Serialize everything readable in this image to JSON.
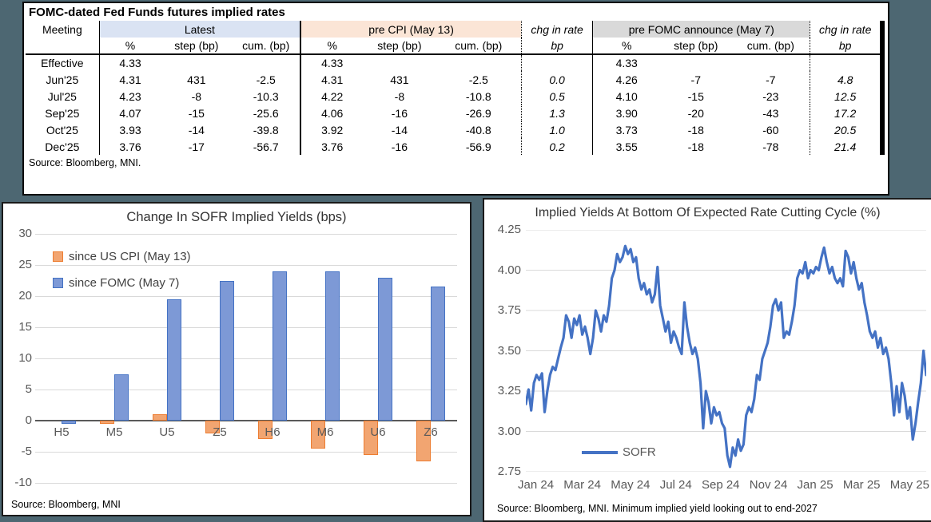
{
  "page_bg": "#4d6772",
  "table_panel": {
    "title": "FOMC-dated Fed Funds futures implied rates",
    "source": "Source: Bloomberg, MNI.",
    "groups": {
      "meeting": "Meeting",
      "latest": "Latest",
      "pre_cpi": "pre CPI (May 13)",
      "chg1": "chg in rate",
      "pre_fomc": "pre FOMC announce (May 7)",
      "chg2": "chg in rate"
    },
    "subheaders": [
      "",
      "%",
      "step (bp)",
      "cum. (bp)",
      "%",
      "step (bp)",
      "cum. (bp)",
      "bp",
      "%",
      "step (bp)",
      "cum. (bp)",
      "bp"
    ],
    "rows": [
      {
        "meeting": "Effective",
        "cells": [
          "4.33",
          "",
          "",
          "4.33",
          "",
          "",
          "",
          "4.33",
          "",
          "",
          ""
        ]
      },
      {
        "meeting": "Jun'25",
        "cells": [
          "4.31",
          "431",
          "-2.5",
          "4.31",
          "431",
          "-2.5",
          "0.0",
          "4.26",
          "-7",
          "-7",
          "4.8"
        ]
      },
      {
        "meeting": "Jul'25",
        "cells": [
          "4.23",
          "-8",
          "-10.3",
          "4.22",
          "-8",
          "-10.8",
          "0.5",
          "4.10",
          "-15",
          "-23",
          "12.5"
        ]
      },
      {
        "meeting": "Sep'25",
        "cells": [
          "4.07",
          "-15",
          "-25.6",
          "4.06",
          "-16",
          "-26.9",
          "1.3",
          "3.90",
          "-20",
          "-43",
          "17.2"
        ]
      },
      {
        "meeting": "Oct'25",
        "cells": [
          "3.93",
          "-14",
          "-39.8",
          "3.92",
          "-14",
          "-40.8",
          "1.0",
          "3.73",
          "-18",
          "-60",
          "20.5"
        ]
      },
      {
        "meeting": "Dec'25",
        "cells": [
          "3.76",
          "-17",
          "-56.7",
          "3.76",
          "-16",
          "-56.9",
          "0.2",
          "3.55",
          "-18",
          "-78",
          "21.4"
        ]
      }
    ],
    "colors": {
      "latest_bg": "#dae3f3",
      "pre_cpi_bg": "#fbe5d6",
      "pre_fomc_bg": "#d9d9d9"
    }
  },
  "chart_data": [
    {
      "type": "bar",
      "title": "Change In SOFR Implied Yields (bps)",
      "categories": [
        "H5",
        "M5",
        "U5",
        "Z5",
        "H6",
        "M6",
        "U6",
        "Z6"
      ],
      "series": [
        {
          "name": "since US CPI (May 13)",
          "fill": "#f2a571",
          "border": "#ed7d31",
          "values": [
            0,
            -0.5,
            1,
            -2,
            -3,
            -4.5,
            -5.5,
            -6.5
          ]
        },
        {
          "name": "since FOMC (May 7)",
          "fill": "#7d99d6",
          "border": "#4472c4",
          "values": [
            -0.5,
            7.5,
            19.5,
            22.5,
            24,
            24,
            23,
            21.5
          ]
        }
      ],
      "ylim": [
        -10,
        30
      ],
      "ytick_step": 5,
      "grid": true,
      "legend_position": "top-left",
      "source": "Source: Bloomberg, MNI"
    },
    {
      "type": "line",
      "title": "Implied Yields At Bottom Of Expected Rate Cutting Cycle (%)",
      "legend": "SOFR",
      "color": "#4472c4",
      "ylim": [
        2.75,
        4.25
      ],
      "ytick_step": 0.25,
      "grid": true,
      "legend_position": "bottom-left",
      "x_labels": [
        "Jan 24",
        "Mar 24",
        "May 24",
        "Jul 24",
        "Sep 24",
        "Nov 24",
        "Jan 25",
        "Mar 25",
        "May 25"
      ],
      "values": [
        3.17,
        3.26,
        3.13,
        3.3,
        3.35,
        3.32,
        3.36,
        3.12,
        3.25,
        3.35,
        3.4,
        3.38,
        3.45,
        3.52,
        3.58,
        3.72,
        3.68,
        3.58,
        3.7,
        3.66,
        3.72,
        3.6,
        3.65,
        3.58,
        3.48,
        3.58,
        3.75,
        3.7,
        3.62,
        3.72,
        3.68,
        3.78,
        3.95,
        4.0,
        4.1,
        4.05,
        4.08,
        4.15,
        4.1,
        4.13,
        4.05,
        4.08,
        3.95,
        3.88,
        3.92,
        3.85,
        3.88,
        3.8,
        3.85,
        4.02,
        3.78,
        3.7,
        3.62,
        3.68,
        3.55,
        3.62,
        3.58,
        3.52,
        3.48,
        3.8,
        3.65,
        3.55,
        3.48,
        3.52,
        3.45,
        3.3,
        3.02,
        3.25,
        3.18,
        3.05,
        3.15,
        3.1,
        3.12,
        3.05,
        3.02,
        2.85,
        2.78,
        2.9,
        2.85,
        2.95,
        2.88,
        2.92,
        3.1,
        3.15,
        3.12,
        3.2,
        3.35,
        3.32,
        3.45,
        3.5,
        3.55,
        3.65,
        3.78,
        3.82,
        3.75,
        3.8,
        3.58,
        3.62,
        3.6,
        3.68,
        3.78,
        3.95,
        4.0,
        3.98,
        4.05,
        3.95,
        4.0,
        3.98,
        4.02,
        4.0,
        4.08,
        4.14,
        4.05,
        3.98,
        4.02,
        3.95,
        3.92,
        3.95,
        3.9,
        4.12,
        4.08,
        3.98,
        4.05,
        3.95,
        3.88,
        3.92,
        3.8,
        3.72,
        3.62,
        3.58,
        3.62,
        3.52,
        3.58,
        3.48,
        3.52,
        3.45,
        3.3,
        3.1,
        3.28,
        3.12,
        3.3,
        3.22,
        3.08,
        3.15,
        2.95,
        3.05,
        3.18,
        3.3,
        3.5,
        3.35
      ],
      "source": "Source: Bloomberg, MNI. Minimum implied yield looking out to end-2027"
    }
  ]
}
